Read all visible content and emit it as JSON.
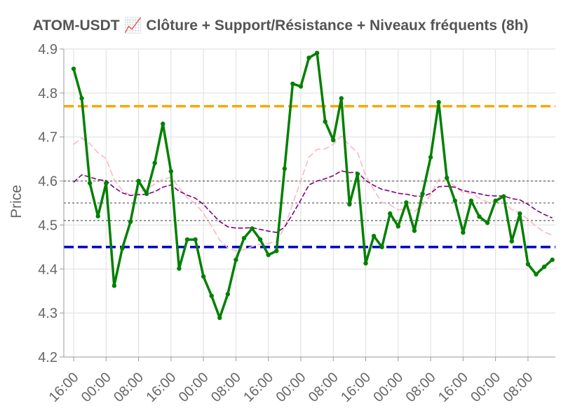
{
  "chart_data": {
    "type": "line",
    "title": "ATOM-USDT 📈 Clôture + Support/Résistance + Niveaux fréquents (8h)",
    "xlabel": "",
    "ylabel": "Price",
    "ylim": [
      4.2,
      4.9
    ],
    "yticks": [
      "4.2",
      "4.3",
      "4.4",
      "4.5",
      "4.6",
      "4.7",
      "4.8",
      "4.9"
    ],
    "xticks": [
      "16:00",
      "00:00",
      "08:00",
      "16:00",
      "00:00",
      "08:00",
      "16:00",
      "00:00",
      "08:00",
      "16:00",
      "00:00",
      "08:00",
      "16:00",
      "00:00",
      "08:00"
    ],
    "grid": true,
    "series": [
      {
        "role": "close",
        "color": "#008000",
        "values": [
          4.855,
          4.788,
          4.595,
          4.52,
          4.595,
          4.362,
          4.447,
          4.507,
          4.6,
          4.571,
          4.641,
          4.73,
          4.622,
          4.401,
          4.467,
          4.467,
          4.383,
          4.339,
          4.289,
          4.343,
          4.421,
          4.47,
          4.492,
          4.467,
          4.432,
          4.441,
          4.628,
          4.821,
          4.815,
          4.88,
          4.891,
          4.735,
          4.693,
          4.788,
          4.547,
          4.616,
          4.413,
          4.475,
          4.45,
          4.526,
          4.497,
          4.551,
          4.487,
          4.571,
          4.654,
          4.779,
          4.607,
          4.555,
          4.483,
          4.555,
          4.519,
          4.505,
          4.555,
          4.565,
          4.463,
          4.526,
          4.411,
          4.388,
          4.405,
          4.421
        ]
      },
      {
        "role": "moving-average-fast",
        "color": "#ffb6c1",
        "values": [
          4.683,
          4.698,
          4.685,
          4.664,
          4.651,
          4.603,
          4.579,
          4.567,
          4.573,
          4.582,
          4.593,
          4.604,
          4.608,
          4.585,
          4.562,
          4.548,
          4.527,
          4.497,
          4.466,
          4.448,
          4.441,
          4.444,
          4.451,
          4.456,
          4.458,
          4.463,
          4.494,
          4.548,
          4.601,
          4.654,
          4.672,
          4.673,
          4.683,
          4.702,
          4.681,
          4.665,
          4.612,
          4.58,
          4.551,
          4.546,
          4.534,
          4.537,
          4.531,
          4.545,
          4.568,
          4.604,
          4.601,
          4.588,
          4.574,
          4.572,
          4.561,
          4.552,
          4.553,
          4.551,
          4.535,
          4.528,
          4.513,
          4.497,
          4.484,
          4.477
        ]
      },
      {
        "role": "moving-average-slow",
        "color": "#800080",
        "values": [
          4.597,
          4.614,
          4.609,
          4.603,
          4.601,
          4.585,
          4.573,
          4.567,
          4.569,
          4.57,
          4.576,
          4.586,
          4.591,
          4.577,
          4.568,
          4.561,
          4.547,
          4.527,
          4.508,
          4.496,
          4.493,
          4.493,
          4.494,
          4.49,
          4.486,
          4.483,
          4.495,
          4.525,
          4.557,
          4.591,
          4.6,
          4.605,
          4.612,
          4.623,
          4.619,
          4.62,
          4.601,
          4.59,
          4.581,
          4.577,
          4.572,
          4.57,
          4.566,
          4.565,
          4.572,
          4.587,
          4.588,
          4.586,
          4.578,
          4.575,
          4.571,
          4.567,
          4.566,
          4.566,
          4.56,
          4.557,
          4.547,
          4.534,
          4.524,
          4.516
        ]
      }
    ],
    "levels": [
      {
        "role": "resistance",
        "value": 4.77,
        "color": "#ffa500",
        "style": "dashed-bold"
      },
      {
        "role": "support",
        "value": 4.45,
        "color": "#0000cd",
        "style": "dashed-bold"
      },
      {
        "role": "frequent-level",
        "value": 4.6,
        "color": "#808080",
        "style": "dotted"
      },
      {
        "role": "frequent-level",
        "value": 4.55,
        "color": "#808080",
        "style": "dotted"
      },
      {
        "role": "frequent-level",
        "value": 4.51,
        "color": "#808080",
        "style": "dotted"
      }
    ]
  }
}
